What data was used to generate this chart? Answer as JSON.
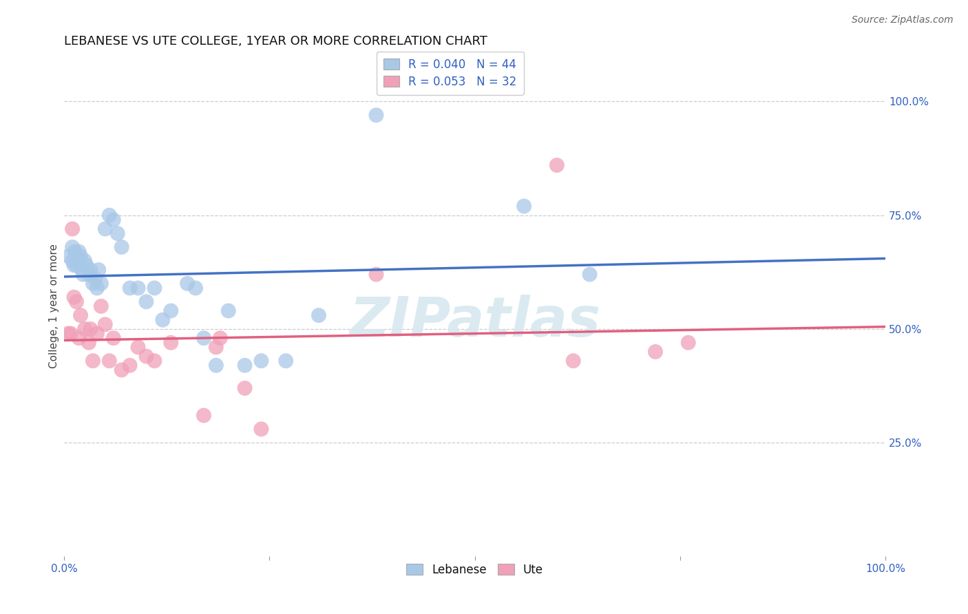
{
  "title": "LEBANESE VS UTE COLLEGE, 1YEAR OR MORE CORRELATION CHART",
  "source_text": "Source: ZipAtlas.com",
  "ylabel": "College, 1 year or more",
  "blue_color": "#a8c8e8",
  "pink_color": "#f0a0b8",
  "blue_line_color": "#4472c4",
  "pink_line_color": "#e06080",
  "legend_R_blue": "R = 0.040",
  "legend_N_blue": "N = 44",
  "legend_R_pink": "R = 0.053",
  "legend_N_pink": "N = 32",
  "watermark_text": "ZIPatlas",
  "title_fontsize": 13,
  "axis_label_fontsize": 11,
  "tick_fontsize": 11,
  "legend_fontsize": 12,
  "source_fontsize": 10,
  "blue_scatter_x": [
    0.005,
    0.01,
    0.01,
    0.012,
    0.013,
    0.015,
    0.015,
    0.017,
    0.018,
    0.02,
    0.022,
    0.023,
    0.025,
    0.027,
    0.03,
    0.032,
    0.035,
    0.038,
    0.04,
    0.042,
    0.045,
    0.05,
    0.055,
    0.06,
    0.065,
    0.07,
    0.08,
    0.09,
    0.1,
    0.11,
    0.12,
    0.13,
    0.15,
    0.16,
    0.17,
    0.185,
    0.2,
    0.22,
    0.24,
    0.27,
    0.31,
    0.38,
    0.56,
    0.64
  ],
  "blue_scatter_y": [
    0.66,
    0.65,
    0.68,
    0.64,
    0.67,
    0.66,
    0.64,
    0.65,
    0.67,
    0.66,
    0.63,
    0.62,
    0.65,
    0.64,
    0.62,
    0.63,
    0.6,
    0.61,
    0.59,
    0.63,
    0.6,
    0.72,
    0.75,
    0.74,
    0.71,
    0.68,
    0.59,
    0.59,
    0.56,
    0.59,
    0.52,
    0.54,
    0.6,
    0.59,
    0.48,
    0.42,
    0.54,
    0.42,
    0.43,
    0.43,
    0.53,
    0.97,
    0.77,
    0.62
  ],
  "pink_scatter_x": [
    0.005,
    0.008,
    0.01,
    0.012,
    0.015,
    0.018,
    0.02,
    0.025,
    0.03,
    0.032,
    0.035,
    0.04,
    0.045,
    0.05,
    0.055,
    0.06,
    0.07,
    0.08,
    0.09,
    0.1,
    0.11,
    0.13,
    0.17,
    0.185,
    0.19,
    0.22,
    0.24,
    0.38,
    0.6,
    0.62,
    0.72,
    0.76
  ],
  "pink_scatter_y": [
    0.49,
    0.49,
    0.72,
    0.57,
    0.56,
    0.48,
    0.53,
    0.5,
    0.47,
    0.5,
    0.43,
    0.49,
    0.55,
    0.51,
    0.43,
    0.48,
    0.41,
    0.42,
    0.46,
    0.44,
    0.43,
    0.47,
    0.31,
    0.46,
    0.48,
    0.37,
    0.28,
    0.62,
    0.86,
    0.43,
    0.45,
    0.47
  ]
}
